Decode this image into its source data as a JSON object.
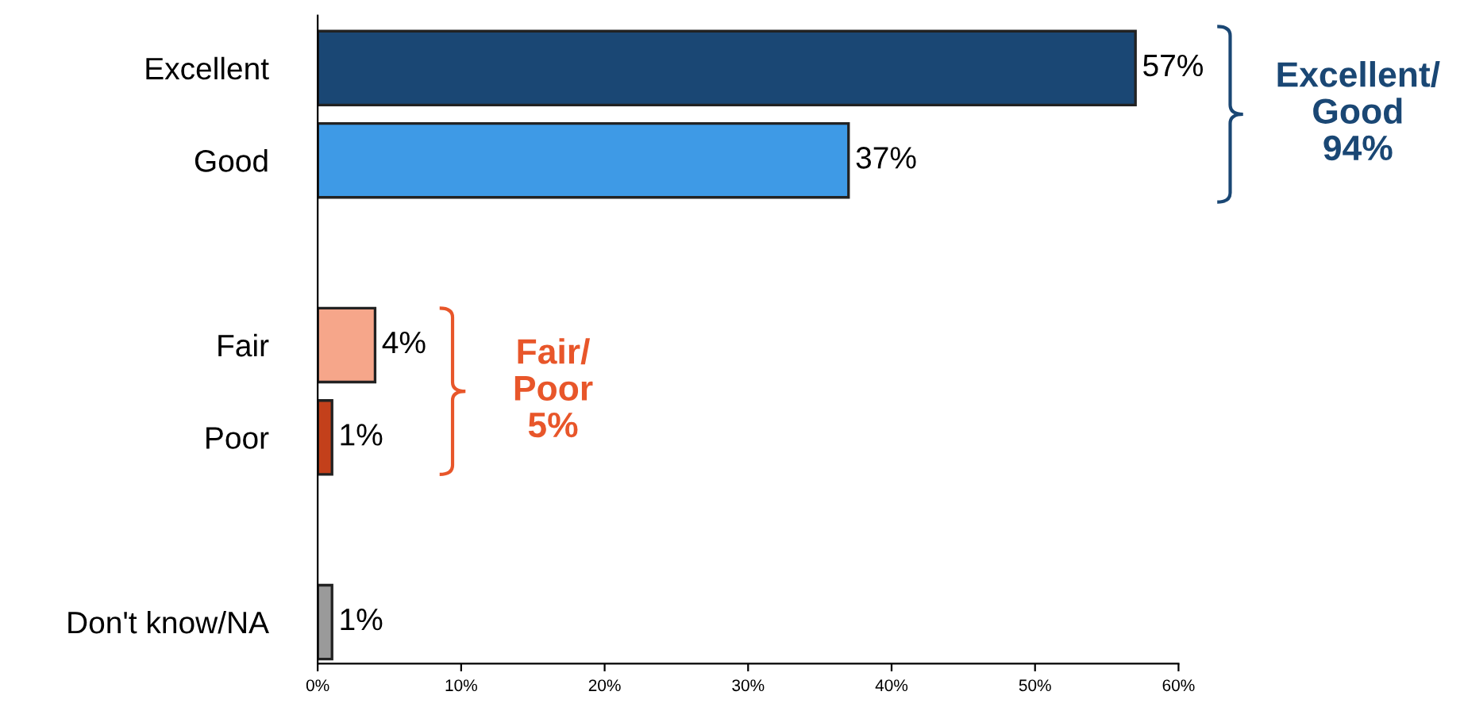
{
  "chart_data": {
    "type": "bar",
    "orientation": "horizontal",
    "categories": [
      "Excellent",
      "Good",
      null,
      "Fair",
      "Poor",
      null,
      "Don't know/NA"
    ],
    "values": [
      57,
      37,
      null,
      4,
      1,
      null,
      1
    ],
    "value_labels": [
      "57%",
      "37%",
      null,
      "4%",
      "1%",
      null,
      "1%"
    ],
    "colors": [
      "#1a4774",
      "#3e9ae6",
      null,
      "#f6a68a",
      "#c3401b",
      null,
      "#9a9a9a"
    ],
    "xlim": [
      0,
      60
    ],
    "xticks": [
      {
        "value": 0,
        "label": "0%"
      },
      {
        "value": 10,
        "label": "10%"
      },
      {
        "value": 20,
        "label": "20%"
      },
      {
        "value": 30,
        "label": "30%"
      },
      {
        "value": 40,
        "label": "40%"
      },
      {
        "value": 50,
        "label": "50%"
      },
      {
        "value": 60,
        "label": "60%"
      }
    ],
    "annotations": [
      "Excellent/\nGood\n94%",
      "Fair/\nPoor\n5%"
    ],
    "grid": false,
    "legend": false
  }
}
